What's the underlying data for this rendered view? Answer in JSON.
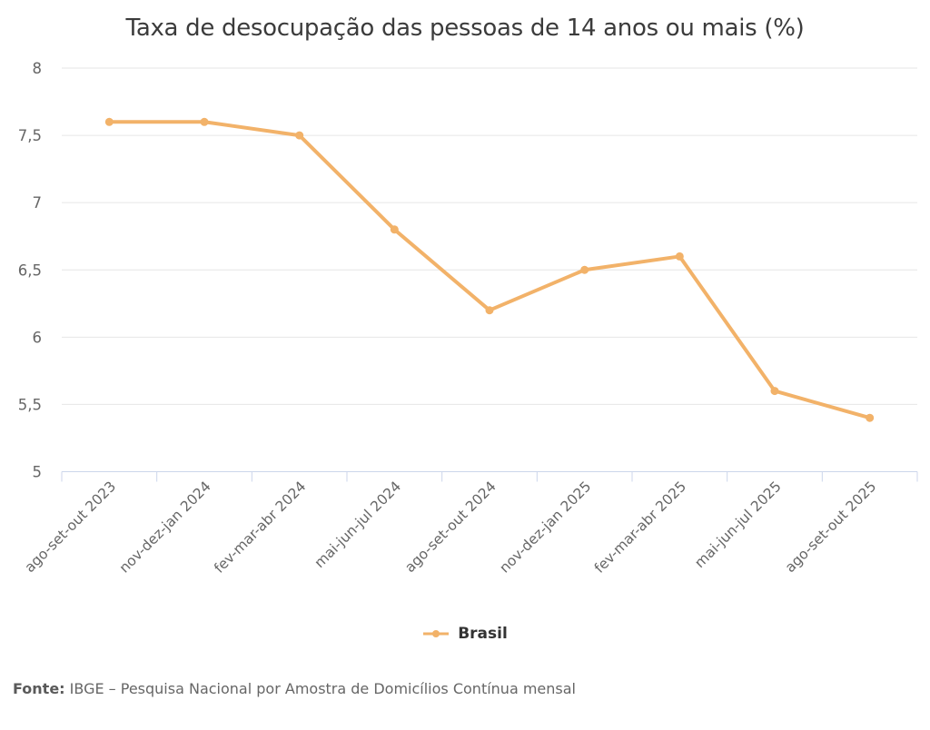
{
  "chart_data": {
    "type": "line",
    "title": "Taxa de desocupação das pessoas de 14 anos ou mais (%)",
    "categories": [
      "ago-set-out 2023",
      "nov-dez-jan 2024",
      "fev-mar-abr 2024",
      "mai-jun-jul 2024",
      "ago-set-out 2024",
      "nov-dez-jan 2025",
      "fev-mar-abr 2025",
      "mai-jun-jul 2025",
      "ago-set-out 2025"
    ],
    "series": [
      {
        "name": "Brasil",
        "color": "#f2b269",
        "values": [
          7.6,
          7.6,
          7.5,
          6.8,
          6.2,
          6.5,
          6.6,
          5.6,
          5.4
        ]
      }
    ],
    "xlabel": "",
    "ylabel": "",
    "ylim": [
      5,
      8
    ],
    "ytick_step": 0.5,
    "ytick_labels": [
      "5",
      "5,5",
      "6",
      "6,5",
      "7",
      "7,5",
      "8"
    ],
    "grid": "horizontal",
    "legend_position": "bottom-center",
    "x_label_rotation": -45
  },
  "legend": {
    "items": [
      {
        "label": "Brasil",
        "color": "#f2b269"
      }
    ]
  },
  "footer": {
    "label": "Fonte:",
    "text": "IBGE – Pesquisa Nacional por Amostra de Domicílios Contínua mensal"
  },
  "colors": {
    "line": "#f2b269",
    "grid_line": "#e6e6e6",
    "axis_line": "#ccd6eb",
    "tick_label": "#666666",
    "title": "#3b3b3b",
    "legend_text": "#333333"
  }
}
